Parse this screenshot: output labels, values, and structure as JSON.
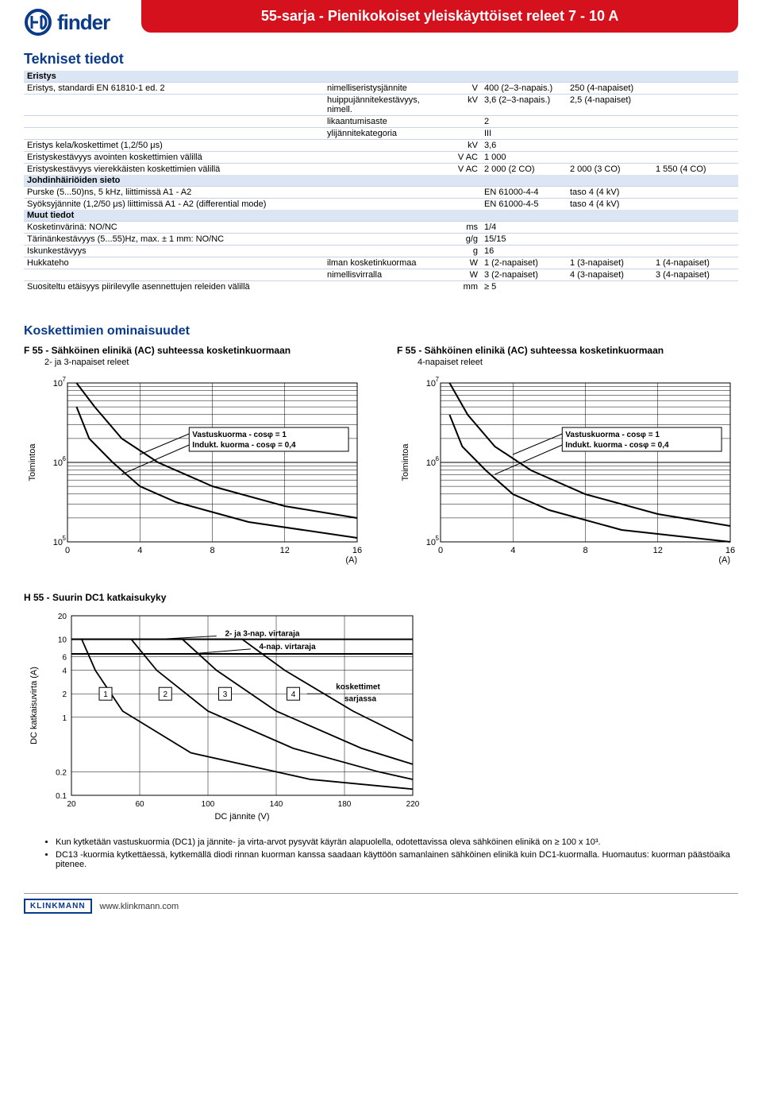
{
  "header": {
    "brand": "finder",
    "banner": "55-sarja - Pienikokoiset yleiskäyttöiset releet 7 - 10 A"
  },
  "section_title": "Tekniset tiedot",
  "eristys_heading": "Eristys",
  "rows": [
    {
      "desc": "Eristys, standardi EN 61810-1 ed. 2",
      "sub": "nimelliseristysjännite",
      "unit": "V",
      "v1": "400 (2–3-napais.)",
      "v2": "250 (4-napaiset)",
      "v3": ""
    },
    {
      "desc": "",
      "sub": "huippujännitekestävyys, nimell.",
      "unit": "kV",
      "v1": "3,6 (2–3-napais.)",
      "v2": "2,5 (4-napaiset)",
      "v3": ""
    },
    {
      "desc": "",
      "sub": "likaantumisaste",
      "unit": "",
      "v1": "2",
      "v2": "",
      "v3": ""
    },
    {
      "desc": "",
      "sub": "ylijännitekategoria",
      "unit": "",
      "v1": "III",
      "v2": "",
      "v3": ""
    },
    {
      "desc": "Eristys kela/koskettimet (1,2/50 μs)",
      "sub": "",
      "unit": "kV",
      "v1": "3,6",
      "v2": "",
      "v3": ""
    },
    {
      "desc": "Eristyskestävyys avointen koskettimien välillä",
      "sub": "",
      "unit": "V AC",
      "v1": "1 000",
      "v2": "",
      "v3": ""
    },
    {
      "desc": "Eristyskestävyys vierekkäisten koskettimien välillä",
      "sub": "",
      "unit": "V AC",
      "v1": "2 000 (2 CO)",
      "v2": "2 000 (3 CO)",
      "v3": "1 550 (4 CO)"
    }
  ],
  "johd_heading": "Johdinhäiriöiden sieto",
  "johd_rows": [
    {
      "desc": "Purske (5...50)ns, 5 kHz, liittimissä A1 - A2",
      "sub": "",
      "unit": "",
      "v1": "EN 61000-4-4",
      "v2": "taso 4 (4 kV)",
      "v3": ""
    },
    {
      "desc": "Syöksyjännite (1,2/50 μs) liittimissä A1 - A2 (differential mode)",
      "sub": "",
      "unit": "",
      "v1": "EN 61000-4-5",
      "v2": "taso 4 (4 kV)",
      "v3": ""
    }
  ],
  "muut_heading": "Muut tiedot",
  "muut_rows": [
    {
      "desc": "Kosketinvärinä: NO/NC",
      "sub": "",
      "unit": "ms",
      "v1": "1/4",
      "v2": "",
      "v3": ""
    },
    {
      "desc": "Tärinänkestävyys (5...55)Hz, max. ± 1 mm: NO/NC",
      "sub": "",
      "unit": "g/g",
      "v1": "15/15",
      "v2": "",
      "v3": ""
    },
    {
      "desc": "Iskunkestävyys",
      "sub": "",
      "unit": "g",
      "v1": "16",
      "v2": "",
      "v3": ""
    },
    {
      "desc": "Hukkateho",
      "sub": "ilman kosketinkuormaa",
      "unit": "W",
      "v1": "1 (2-napaiset)",
      "v2": "1 (3-napaiset)",
      "v3": "1 (4-napaiset)"
    },
    {
      "desc": "",
      "sub": "nimellisvirralla",
      "unit": "W",
      "v1": "3 (2-napaiset)",
      "v2": "4 (3-napaiset)",
      "v3": "3 (4-napaiset)"
    },
    {
      "desc": "Suositeltu etäisyys piirilevylle asennettujen releiden välillä",
      "sub": "",
      "unit": "mm",
      "v1": "≥ 5",
      "v2": "",
      "v3": ""
    }
  ],
  "contacts_heading": "Koskettimien ominaisuudet",
  "chart_f55_a": {
    "title": "F 55 - Sähköinen elinikä (AC) suhteessa kosketinkuormaan",
    "subtitle": "2- ja 3-napaiset releet",
    "type": "line-log",
    "xlim": [
      0,
      16
    ],
    "xticks": [
      0,
      4,
      8,
      12,
      16
    ],
    "xunit": "(A)",
    "ylim_exp": [
      5,
      7
    ],
    "yticks_exp": [
      5,
      6,
      7
    ],
    "ylabel": "Toimintoa",
    "label_res": "Vastuskuorma - cosφ = 1",
    "label_ind": "Indukt. kuorma - cosφ = 0,4",
    "grid_color": "#000",
    "bg": "#fff",
    "curve_res": [
      [
        0.5,
        7.0
      ],
      [
        1.5,
        6.7
      ],
      [
        3,
        6.3
      ],
      [
        5,
        6.0
      ],
      [
        8,
        5.7
      ],
      [
        12,
        5.45
      ],
      [
        16,
        5.3
      ]
    ],
    "curve_ind": [
      [
        0.5,
        6.7
      ],
      [
        1.2,
        6.3
      ],
      [
        2.5,
        6.0
      ],
      [
        4,
        5.7
      ],
      [
        6,
        5.5
      ],
      [
        10,
        5.25
      ],
      [
        16,
        5.05
      ]
    ]
  },
  "chart_f55_b": {
    "title": "F 55 - Sähköinen elinikä (AC) suhteessa kosketinkuormaan",
    "subtitle": "4-napaiset releet",
    "type": "line-log",
    "xlim": [
      0,
      16
    ],
    "xticks": [
      0,
      4,
      8,
      12,
      16
    ],
    "xunit": "(A)",
    "ylim_exp": [
      5,
      7
    ],
    "yticks_exp": [
      5,
      6,
      7
    ],
    "ylabel": "Toimintoa",
    "label_res": "Vastuskuorma - cosφ = 1",
    "label_ind": "Indukt. kuorma - cosφ = 0,4",
    "grid_color": "#000",
    "bg": "#fff",
    "curve_res": [
      [
        0.5,
        7.0
      ],
      [
        1.5,
        6.6
      ],
      [
        3,
        6.2
      ],
      [
        5,
        5.9
      ],
      [
        8,
        5.6
      ],
      [
        12,
        5.35
      ],
      [
        16,
        5.2
      ]
    ],
    "curve_ind": [
      [
        0.5,
        6.6
      ],
      [
        1.2,
        6.2
      ],
      [
        2.5,
        5.9
      ],
      [
        4,
        5.6
      ],
      [
        6,
        5.4
      ],
      [
        10,
        5.15
      ],
      [
        16,
        5.0
      ]
    ]
  },
  "chart_h55": {
    "title": "H 55 - Suurin DC1 katkaisukyky",
    "type": "line-loglog",
    "xlim": [
      20,
      220
    ],
    "xticks": [
      20,
      60,
      100,
      140,
      180,
      220
    ],
    "xlabel": "DC jännite (V)",
    "yticks": [
      0.1,
      0.2,
      1,
      2,
      4,
      6,
      10,
      20
    ],
    "ylabel": "DC katkaisuvirta (A)",
    "label_23": "2- ja 3-nap. virtaraja",
    "label_4": "4-nap. virtaraja",
    "label_series": "koskettimet sarjassa",
    "series_labels": [
      "1",
      "2",
      "3",
      "4"
    ],
    "grid_color": "#000"
  },
  "notes": [
    "Kun kytketään vastuskuormia (DC1) ja jännite- ja virta-arvot pysyvät käyrän alapuolella, odotettavissa oleva sähköinen elinikä on ≥ 100 x 10³.",
    "DC13 -kuormia kytkettäessä, kytkemällä diodi rinnan kuorman kanssa saadaan käyttöön samanlainen sähköinen elinikä kuin DC1-kuormalla. Huomautus: kuorman päästöaika pitenee."
  ],
  "footer": {
    "logo": "KLINKMANN",
    "url": "www.klinkmann.com"
  }
}
